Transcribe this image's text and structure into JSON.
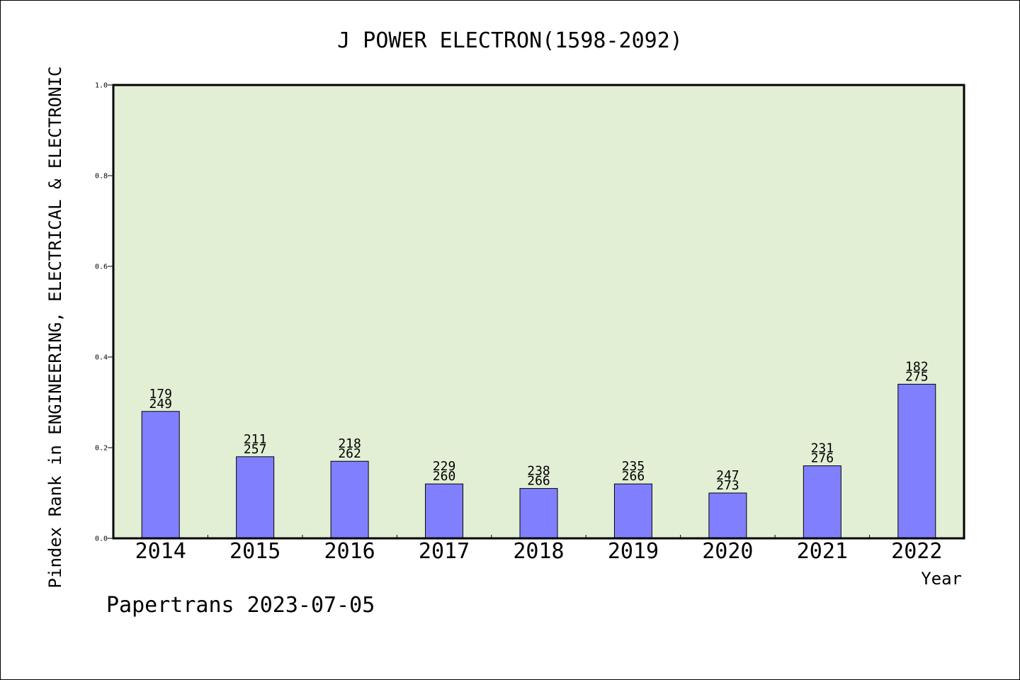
{
  "chart_data": {
    "type": "bar",
    "title": "J POWER ELECTRON(1598-2092)",
    "xlabel": "Year",
    "ylabel": "Pindex Rank in ENGINEERING, ELECTRICAL & ELECTRONIC",
    "ylim": [
      0,
      1.0
    ],
    "yticks": [
      "0.0",
      "0.2",
      "0.4",
      "0.6",
      "0.8",
      "1.0"
    ],
    "grid": false,
    "categories": [
      "2014",
      "2015",
      "2016",
      "2017",
      "2018",
      "2019",
      "2020",
      "2021",
      "2022"
    ],
    "values": [
      0.28,
      0.18,
      0.17,
      0.12,
      0.11,
      0.12,
      0.1,
      0.16,
      0.34
    ],
    "labels_top": [
      "179",
      "211",
      "218",
      "229",
      "238",
      "235",
      "247",
      "231",
      "182"
    ],
    "labels_bottom": [
      "249",
      "257",
      "262",
      "260",
      "266",
      "266",
      "273",
      "276",
      "275"
    ],
    "colors": {
      "plot_background": "#e2efd5",
      "bar_fill": "#8080ff",
      "bar_stroke": "#000000"
    }
  },
  "footer": "Papertrans 2023-07-05"
}
